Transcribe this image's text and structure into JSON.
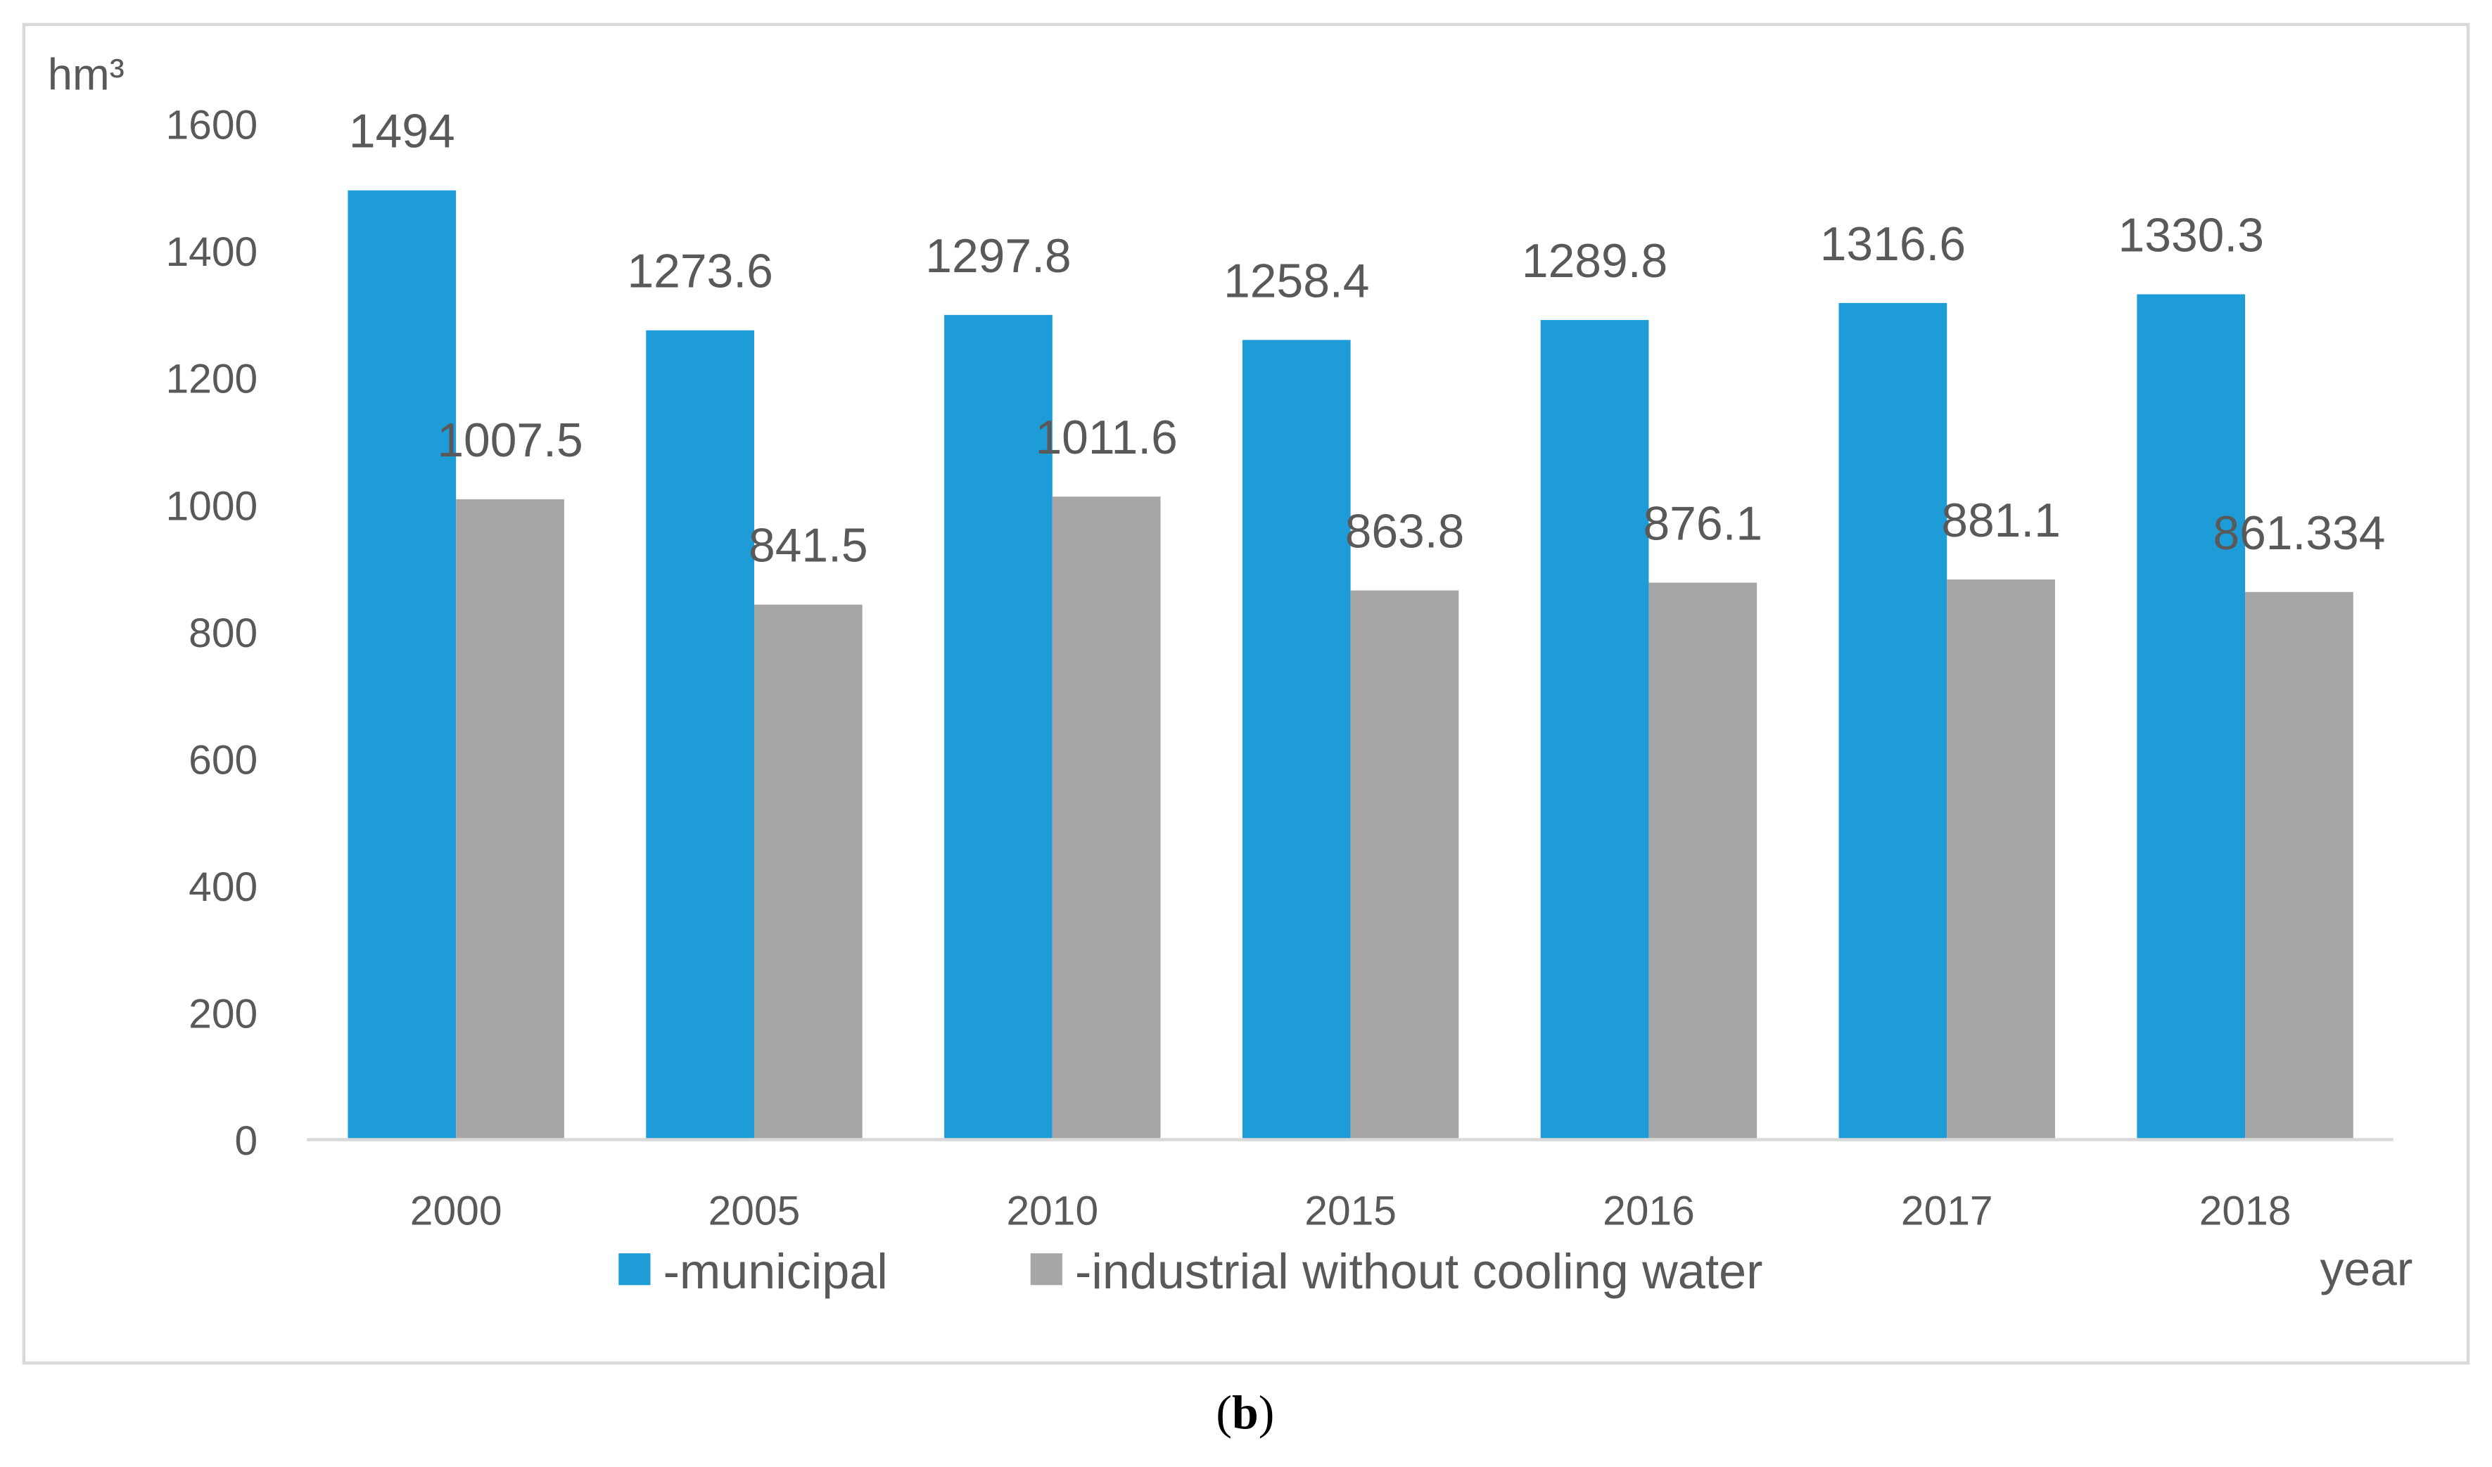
{
  "chart_data": {
    "type": "bar",
    "title": "",
    "xlabel": "year",
    "ylabel": "hm³",
    "ylim": [
      0,
      1600
    ],
    "yticks": [
      0,
      200,
      400,
      600,
      800,
      1000,
      1200,
      1400,
      1600
    ],
    "categories": [
      "2000",
      "2005",
      "2010",
      "2015",
      "2016",
      "2017",
      "2018"
    ],
    "series": [
      {
        "name": "-municipal",
        "color": "#1e9cd7",
        "values": [
          1494,
          1273.6,
          1297.8,
          1258.4,
          1289.8,
          1316.6,
          1330.3
        ],
        "labels": [
          "1494",
          "1273.6",
          "1297.8",
          "1258.4",
          "1289.8",
          "1316.6",
          "1330.3"
        ]
      },
      {
        "name": "-industrial without cooling water",
        "color": "#a6a6a6",
        "values": [
          1007.5,
          841.5,
          1011.6,
          863.8,
          876.1,
          881.1,
          861.334
        ],
        "labels": [
          "1007.5",
          "841.5",
          "1011.6",
          "863.8",
          "876.1",
          "881.1",
          "861.334"
        ]
      }
    ],
    "grid": false,
    "legend_position": "bottom"
  },
  "caption_letter": "b",
  "caption_open": "(",
  "caption_close": ")"
}
